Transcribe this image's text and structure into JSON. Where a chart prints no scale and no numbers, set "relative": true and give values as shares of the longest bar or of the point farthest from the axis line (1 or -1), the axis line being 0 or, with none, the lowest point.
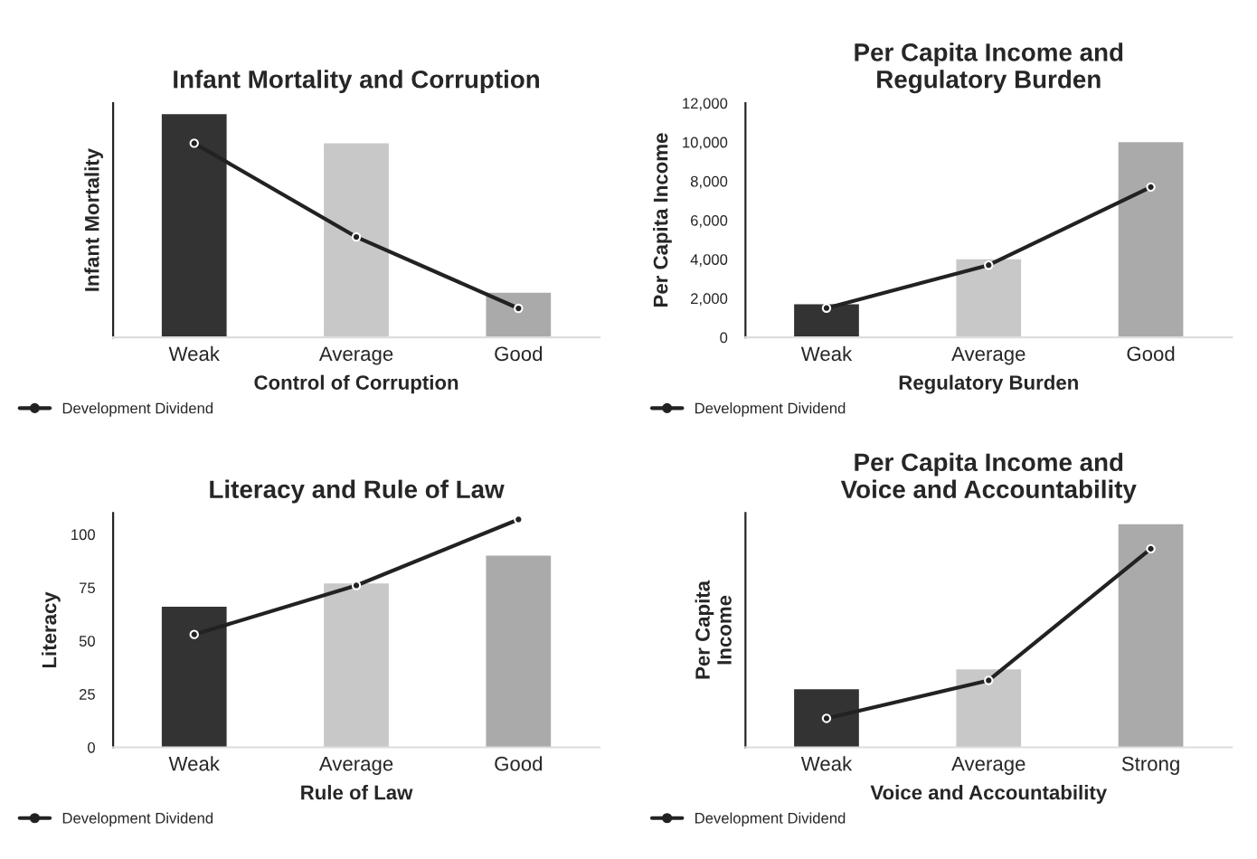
{
  "chart_data": [
    {
      "type": "bar",
      "title": "Infant Mortality and Corruption",
      "xlabel": "Control of Corruption",
      "ylabel": "Infant Mortality",
      "categories": [
        "Weak",
        "Average",
        "Good"
      ],
      "relative": true,
      "legend": "bottom left",
      "series": [
        {
          "colors": [
            "#333333",
            "#c8c8c8",
            "#aaaaaa"
          ],
          "values": [
            1,
            0.87,
            0.2
          ]
        },
        {
          "type": "line",
          "name": "Development Dividend",
          "color": "#222222",
          "marker": "circle",
          "values": [
            0.87,
            0.45,
            0.13
          ]
        }
      ]
    },
    {
      "type": "bar",
      "title": "Per Capita Income and\nRegulatory Burden",
      "xlabel": "Regulatory Burden",
      "ylabel": "Per Capita Income",
      "categories": [
        "Weak",
        "Average",
        "Good"
      ],
      "legend": "bottom left",
      "ylim": [
        0,
        12000
      ],
      "yticks": [
        0,
        {
          "value": 2000,
          "label": "2,000"
        },
        {
          "value": 4000,
          "label": "4,000"
        },
        {
          "value": 6000,
          "label": "6,000"
        },
        {
          "value": 8000,
          "label": "8,000"
        },
        {
          "value": 10000,
          "label": "10,000"
        },
        {
          "value": 12000,
          "label": "12,000"
        }
      ],
      "series": [
        {
          "colors": [
            "#333333",
            "#c8c8c8",
            "#aaaaaa"
          ],
          "values": [
            1700,
            4000,
            10000
          ]
        },
        {
          "type": "line",
          "name": "Development Dividend",
          "color": "#222222",
          "marker": "circle",
          "values": [
            1500,
            3700,
            7700
          ]
        }
      ]
    },
    {
      "type": "bar",
      "title": "Literacy and Rule of Law",
      "xlabel": "Rule of Law",
      "ylabel": "Literacy",
      "categories": [
        "Weak",
        "Average",
        "Good"
      ],
      "legend": "bottom left",
      "ylim": [
        0,
        110
      ],
      "yticks": [
        0,
        25,
        50,
        75,
        100
      ],
      "series": [
        {
          "colors": [
            "#333333",
            "#c8c8c8",
            "#aaaaaa"
          ],
          "values": [
            66,
            77,
            90
          ]
        },
        {
          "type": "line",
          "name": "Development Dividend",
          "color": "#222222",
          "marker": "circle",
          "values": [
            53,
            76,
            107
          ]
        }
      ]
    },
    {
      "type": "bar",
      "title": "Per Capita Income and\nVoice and Accountability",
      "xlabel": "Voice and Accountability",
      "ylabel": "Per Capita\nIncome",
      "categories": [
        "Weak",
        "Average",
        "Strong"
      ],
      "relative": true,
      "legend": "bottom left",
      "series": [
        {
          "colors": [
            "#333333",
            "#c8c8c8",
            "#aaaaaa"
          ],
          "values": [
            0.26,
            0.35,
            1
          ]
        },
        {
          "type": "line",
          "name": "Development Dividend",
          "color": "#222222",
          "marker": "circle",
          "values": [
            0.13,
            0.3,
            0.89
          ]
        }
      ]
    }
  ]
}
